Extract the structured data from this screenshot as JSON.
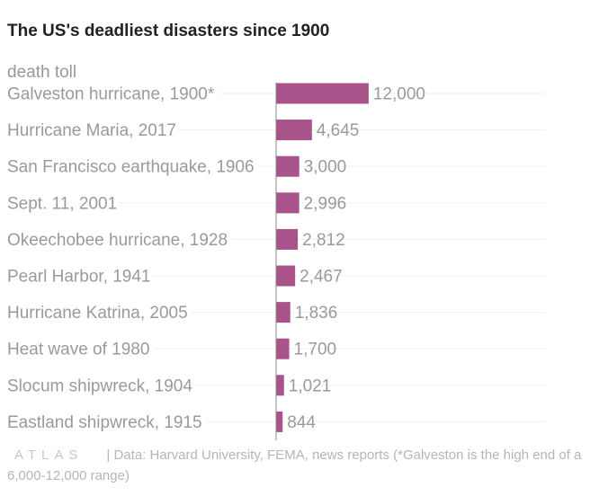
{
  "chart_data": {
    "type": "bar",
    "orientation": "horizontal",
    "title": "The US's deadliest disasters since 1900",
    "series_label": "death toll",
    "categories": [
      "Galveston hurricane, 1900*",
      "Hurricane Maria, 2017",
      "San Francisco earthquake, 1906",
      "Sept. 11, 2001",
      "Okeechobee hurricane, 1928",
      "Pearl Harbor, 1941",
      "Hurricane Katrina, 2005",
      "Heat wave of 1980",
      "Slocum shipwreck, 1904",
      "Eastland shipwreck, 1915"
    ],
    "values": [
      12000,
      4645,
      3000,
      2996,
      2812,
      2467,
      1836,
      1700,
      1021,
      844
    ],
    "value_labels": [
      "12,000",
      "4,645",
      "3,000",
      "2,996",
      "2,812",
      "2,467",
      "1,836",
      "1,700",
      "1,021",
      "844"
    ],
    "xlim": [
      0,
      35000
    ],
    "bar_color": "#a8538a"
  },
  "footer": {
    "logo": "ATLAS",
    "source": "| Data: Harvard University, FEMA, news reports (*Galveston is the high end of a 6,000-12,000 range)"
  }
}
